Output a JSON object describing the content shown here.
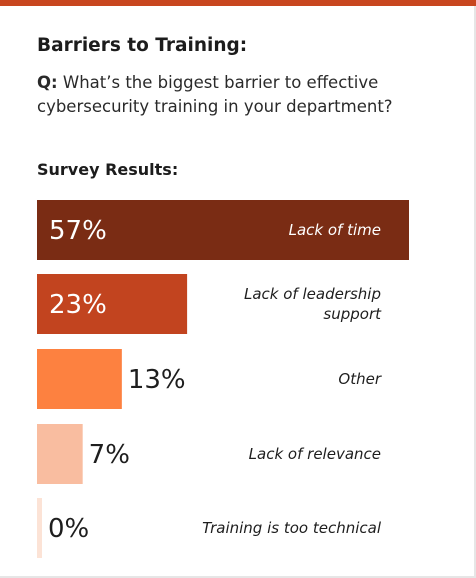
{
  "heading": {
    "title": "Barriers to Training:",
    "question_prefix": "Q:",
    "question_text": "What’s the biggest barrier to effective cybersecurity training in your department?",
    "results_label": "Survey Results:"
  },
  "colors": {
    "accent": "#c8461f",
    "text_on_dark": "#ffffff",
    "text_dark": "#1e1e1e"
  },
  "chart_data": {
    "type": "bar",
    "orientation": "horizontal",
    "unit": "%",
    "xlim": [
      0,
      57
    ],
    "categories": [
      "Lack of time",
      "Lack of leadership support",
      "Other",
      "Lack of relevance",
      "Training is too technical"
    ],
    "values": [
      57,
      23,
      13,
      7,
      0
    ],
    "data_labels": [
      "57%",
      "23%",
      "13%",
      "7%",
      "0%"
    ],
    "category_lines": [
      [
        "Lack of time"
      ],
      [
        "Lack of leadership",
        "support"
      ],
      [
        "Other"
      ],
      [
        "Lack of relevance"
      ],
      [
        "Training is too technical"
      ]
    ],
    "bar_colors": [
      "#7a2c14",
      "#c2441f",
      "#fd8140",
      "#f9bda0",
      "#fce3d6"
    ]
  }
}
